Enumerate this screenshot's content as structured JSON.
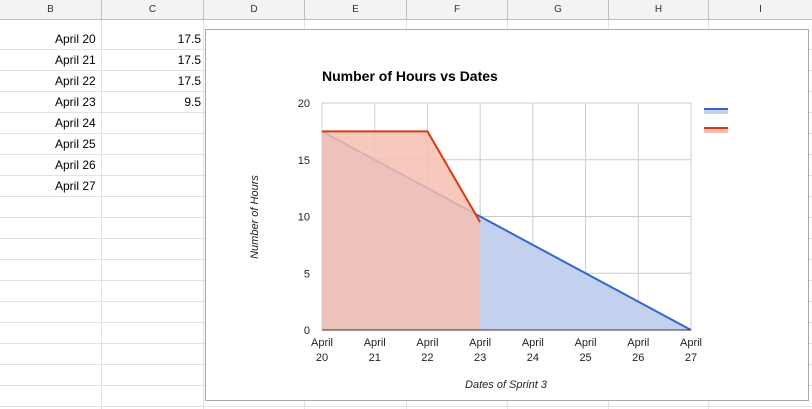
{
  "sheet": {
    "columns": [
      "B",
      "C",
      "D",
      "E",
      "F",
      "G",
      "H",
      "I"
    ],
    "rows": [
      {
        "date": "April 20",
        "hours": "17.5"
      },
      {
        "date": "April 21",
        "hours": "17.5"
      },
      {
        "date": "April 22",
        "hours": "17.5"
      },
      {
        "date": "April 23",
        "hours": "9.5"
      },
      {
        "date": "April 24",
        "hours": ""
      },
      {
        "date": "April 25",
        "hours": ""
      },
      {
        "date": "April 26",
        "hours": ""
      },
      {
        "date": "April 27",
        "hours": ""
      }
    ]
  },
  "chart_data": {
    "type": "area",
    "title": "Number of Hours vs Dates",
    "xlabel": "Dates of Sprint 3",
    "ylabel": "Number of Hours",
    "categories": [
      "April 20",
      "April 21",
      "April 22",
      "April 23",
      "April 24",
      "April 25",
      "April 26",
      "April 27"
    ],
    "ylim": [
      0,
      20
    ],
    "yticks": [
      0,
      5,
      10,
      15,
      20
    ],
    "grid": true,
    "legend": "right",
    "series": [
      {
        "values": [
          17.5,
          15,
          12.5,
          10,
          7.5,
          5,
          2.5,
          0
        ],
        "color": "#3366cc",
        "fill": "#c3d1ef"
      },
      {
        "values": [
          17.5,
          17.5,
          17.5,
          9.5,
          null,
          null,
          null,
          null
        ],
        "color": "#dc3912",
        "fill": "#f4bfb0"
      }
    ]
  }
}
